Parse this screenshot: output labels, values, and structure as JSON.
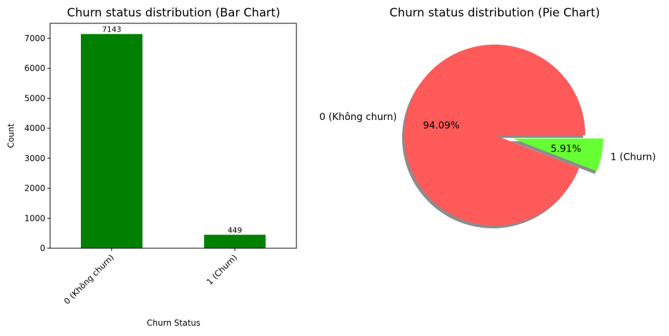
{
  "chart_data": [
    {
      "type": "bar",
      "title": "Churn status distribution (Bar Chart)",
      "xlabel": "Churn Status",
      "ylabel": "Count",
      "categories": [
        "0 (Không churn)",
        "1 (Churn)"
      ],
      "values": [
        7143,
        449
      ],
      "data_labels": [
        "7143",
        "449"
      ],
      "ylim": [
        0,
        7500
      ],
      "yticks": [
        0,
        1000,
        2000,
        3000,
        4000,
        5000,
        6000,
        7000
      ],
      "ytick_labels": [
        "0",
        "1000",
        "2000",
        "3000",
        "4000",
        "5000",
        "6000",
        "7000"
      ],
      "color": "#008000",
      "grid": false,
      "legend": "none"
    },
    {
      "type": "pie",
      "title": "Churn status distribution (Pie Chart)",
      "labels": [
        "0 (Không churn)",
        "1 (Churn)"
      ],
      "values": [
        94.09,
        5.91
      ],
      "pct_labels": [
        "94.09%",
        "5.91%"
      ],
      "colors": [
        "#ff5a5a",
        "#66ff33"
      ],
      "exploded": [
        false,
        true
      ],
      "shadow": true,
      "start_angle_deg": 0,
      "legend": "none"
    }
  ]
}
